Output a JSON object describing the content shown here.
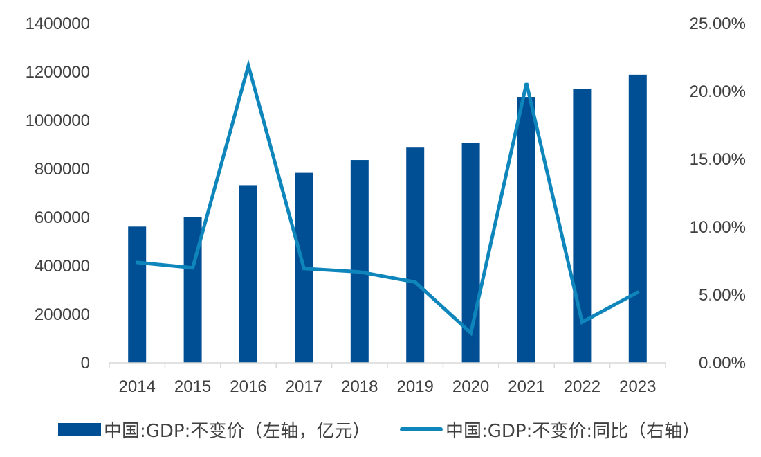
{
  "chart_data": {
    "type": "bar+line",
    "categories": [
      "2014",
      "2015",
      "2016",
      "2017",
      "2018",
      "2019",
      "2020",
      "2021",
      "2022",
      "2023"
    ],
    "series": [
      {
        "name": "中国:GDP:不变价（左轴，亿元）",
        "type": "bar",
        "axis": "left",
        "color": "#004f94",
        "values": [
          562000,
          601000,
          733000,
          784000,
          837000,
          888000,
          907000,
          1097000,
          1129000,
          1189000
        ]
      },
      {
        "name": "中国:GDP:不变价:同比（右轴）",
        "type": "line",
        "axis": "right",
        "color": "#0f86bb",
        "values": [
          0.074,
          0.07,
          0.219,
          0.0695,
          0.067,
          0.0595,
          0.022,
          0.206,
          0.03,
          0.052
        ]
      }
    ],
    "left_axis": {
      "min": 0,
      "max": 1400000,
      "ticks": [
        "0",
        "200000",
        "400000",
        "600000",
        "800000",
        "1000000",
        "1200000",
        "1400000"
      ]
    },
    "right_axis": {
      "min": 0,
      "max": 0.25,
      "ticks": [
        "0.00%",
        "5.00%",
        "10.00%",
        "15.00%",
        "20.00%",
        "25.00%"
      ]
    },
    "legend": {
      "position": "bottom",
      "items": [
        "中国:GDP:不变价（左轴，亿元）",
        "中国:GDP:不变价:同比（右轴）"
      ]
    },
    "grid": false
  }
}
